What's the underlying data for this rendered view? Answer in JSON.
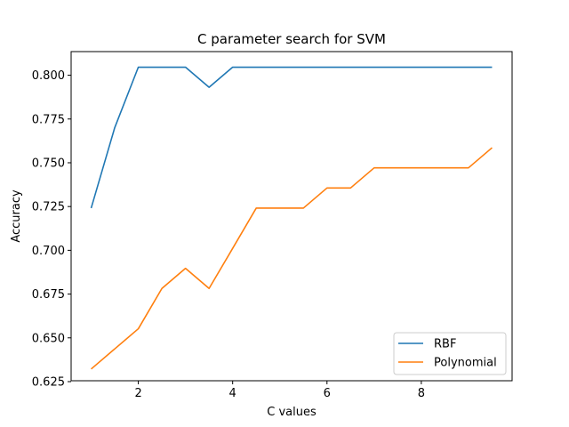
{
  "chart_data": {
    "type": "line",
    "title": "C parameter search for SVM",
    "xlabel": "C values",
    "ylabel": "Accuracy",
    "xlim": [
      0.575,
      9.925
    ],
    "ylim": [
      0.6255,
      0.8135
    ],
    "xticks": [
      2,
      4,
      6,
      8
    ],
    "yticks": [
      0.625,
      0.65,
      0.675,
      0.7,
      0.725,
      0.75,
      0.775,
      0.8
    ],
    "ytick_labels": [
      "0.625",
      "0.650",
      "0.675",
      "0.700",
      "0.725",
      "0.750",
      "0.775",
      "0.800"
    ],
    "xtick_labels": [
      "2",
      "4",
      "6",
      "8"
    ],
    "grid": false,
    "legend": "lower-right",
    "x": [
      1.0,
      1.5,
      2.0,
      2.5,
      3.0,
      3.5,
      4.0,
      4.5,
      5.0,
      5.5,
      6.0,
      6.5,
      7.0,
      7.5,
      8.0,
      8.5,
      9.0,
      9.5
    ],
    "series": [
      {
        "name": "RBF",
        "color": "#1f77b4",
        "values": [
          0.7241,
          0.7701,
          0.8046,
          0.8046,
          0.8046,
          0.7931,
          0.8046,
          0.8046,
          0.8046,
          0.8046,
          0.8046,
          0.8046,
          0.8046,
          0.8046,
          0.8046,
          0.8046,
          0.8046,
          0.8046
        ]
      },
      {
        "name": "Polynomial",
        "color": "#ff7f0e",
        "values": [
          0.6322,
          0.6437,
          0.6552,
          0.6782,
          0.6897,
          0.6782,
          0.7011,
          0.7241,
          0.7241,
          0.7241,
          0.7356,
          0.7356,
          0.7471,
          0.7471,
          0.7471,
          0.7471,
          0.7471,
          0.7586
        ]
      }
    ]
  }
}
